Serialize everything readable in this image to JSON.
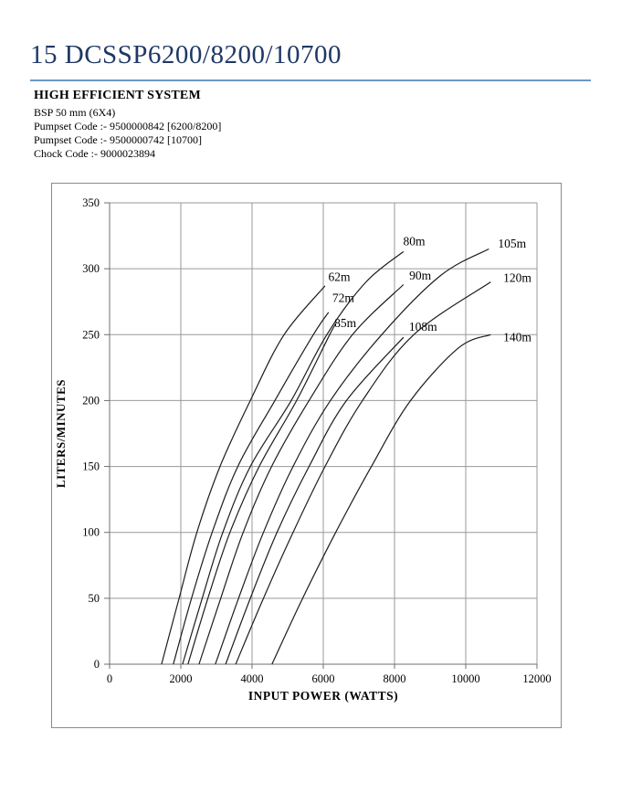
{
  "page": {
    "title": "15 DCSSP6200/8200/10700",
    "title_color": "#1F3864",
    "rule_color": "#6E96C3"
  },
  "info": {
    "heading": "HIGH EFFICIENT SYSTEM",
    "lines": [
      "BSP 50 mm (6X4)",
      "Pumpset Code :- 9500000842 [6200/8200]",
      "Pumpset Code :- 9500000742 [10700]",
      "Chock Code :-  9000023894"
    ]
  },
  "chart_data": {
    "type": "line",
    "title": "",
    "xlabel": "INPUT POWER (WATTS)",
    "ylabel": "LITERS/MINUTES",
    "xlim": [
      0,
      12000
    ],
    "ylim": [
      0,
      350
    ],
    "x_ticks": [
      0,
      2000,
      4000,
      6000,
      8000,
      10000,
      12000
    ],
    "y_ticks": [
      0,
      50,
      100,
      150,
      200,
      250,
      300,
      350
    ],
    "grid": true,
    "legend_position": "labels-at-line-ends",
    "grid_color": "#9a9a9a",
    "axis_color": "#6f6f6f",
    "line_color": "#1c1c1c",
    "label_color": "#000000",
    "series": [
      {
        "name": "62m",
        "label_at": [
          6450,
          294
        ],
        "points": [
          [
            1460,
            0
          ],
          [
            1950,
            50
          ],
          [
            2450,
            100
          ],
          [
            3100,
            150
          ],
          [
            3950,
            200
          ],
          [
            4900,
            250
          ],
          [
            6050,
            287
          ]
        ]
      },
      {
        "name": "72m",
        "label_at": [
          6560,
          278
        ],
        "points": [
          [
            1790,
            0
          ],
          [
            2300,
            50
          ],
          [
            2880,
            100
          ],
          [
            3600,
            150
          ],
          [
            4640,
            200
          ],
          [
            5720,
            250
          ],
          [
            6150,
            267
          ]
        ]
      },
      {
        "name": "80m",
        "label_at": [
          8550,
          321
        ],
        "points": [
          [
            2050,
            0
          ],
          [
            2600,
            50
          ],
          [
            3180,
            100
          ],
          [
            3950,
            150
          ],
          [
            5100,
            200
          ],
          [
            6100,
            250
          ],
          [
            7200,
            290
          ],
          [
            8250,
            313
          ]
        ]
      },
      {
        "name": "85m",
        "label_at": [
          6620,
          259
        ],
        "points": [
          [
            2200,
            0
          ],
          [
            2760,
            50
          ],
          [
            3380,
            100
          ],
          [
            4200,
            150
          ],
          [
            5250,
            200
          ],
          [
            6180,
            250
          ],
          [
            6350,
            258
          ]
        ]
      },
      {
        "name": "90m",
        "label_at": [
          8720,
          295
        ],
        "points": [
          [
            2510,
            0
          ],
          [
            3120,
            50
          ],
          [
            3750,
            100
          ],
          [
            4550,
            150
          ],
          [
            5600,
            200
          ],
          [
            6820,
            250
          ],
          [
            8250,
            288
          ]
        ]
      },
      {
        "name": "105m",
        "label_at": [
          11300,
          319
        ],
        "points": [
          [
            2970,
            0
          ],
          [
            3620,
            50
          ],
          [
            4320,
            100
          ],
          [
            5150,
            150
          ],
          [
            6200,
            200
          ],
          [
            7640,
            250
          ],
          [
            9300,
            295
          ],
          [
            10650,
            315
          ]
        ]
      },
      {
        "name": "108m",
        "label_at": [
          8800,
          256
        ],
        "points": [
          [
            3260,
            0
          ],
          [
            3950,
            50
          ],
          [
            4700,
            100
          ],
          [
            5600,
            150
          ],
          [
            6650,
            200
          ],
          [
            8250,
            248
          ]
        ]
      },
      {
        "name": "120m",
        "label_at": [
          11450,
          293
        ],
        "points": [
          [
            3540,
            0
          ],
          [
            4320,
            50
          ],
          [
            5150,
            100
          ],
          [
            6050,
            150
          ],
          [
            7100,
            200
          ],
          [
            8540,
            250
          ],
          [
            10700,
            290
          ]
        ]
      },
      {
        "name": "140m",
        "label_at": [
          11450,
          248
        ],
        "points": [
          [
            4560,
            0
          ],
          [
            5420,
            50
          ],
          [
            6350,
            100
          ],
          [
            7350,
            150
          ],
          [
            8450,
            200
          ],
          [
            9800,
            240
          ],
          [
            10700,
            250
          ]
        ]
      }
    ]
  }
}
